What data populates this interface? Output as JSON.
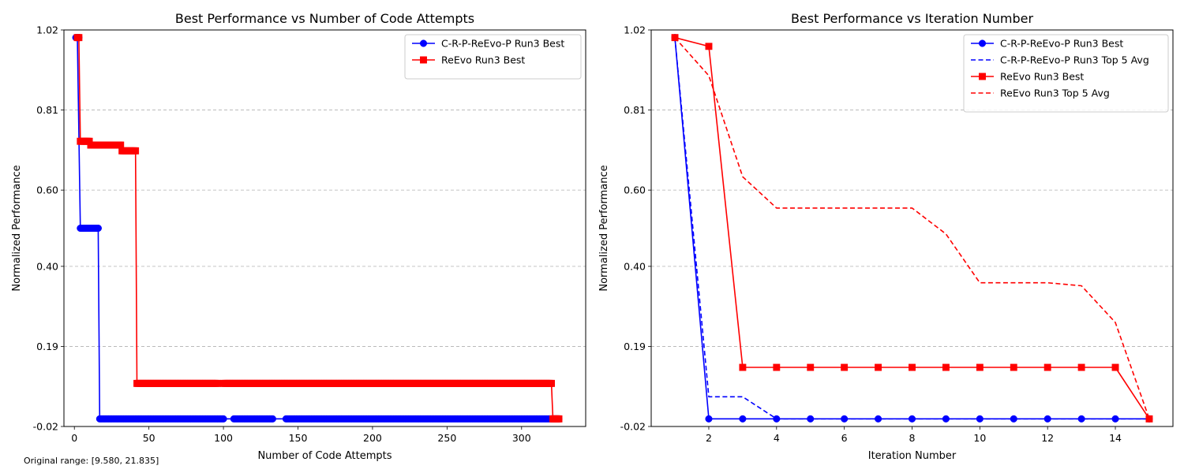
{
  "footnote": "Original range: [9.580, 21.835]",
  "chart_data": [
    {
      "type": "line",
      "title": "Best Performance vs Number of Code Attempts",
      "xlabel": "Number of Code Attempts",
      "ylabel": "Normalized Performance",
      "xlim": [
        -7,
        343
      ],
      "ylim": [
        -0.02,
        1.02
      ],
      "xticks": [
        0,
        50,
        100,
        150,
        200,
        250,
        300
      ],
      "xtick_labels": [
        "0",
        "50",
        "100",
        "150",
        "200",
        "250",
        "300"
      ],
      "yticks": [
        -0.02,
        0.19,
        0.4,
        0.6,
        0.81,
        1.02
      ],
      "ytick_labels": [
        "-0.02",
        "0.19",
        "0.40",
        "0.60",
        "0.81",
        "1.02"
      ],
      "grid": "y-dashed",
      "legend": "top-right",
      "series": [
        {
          "name": "C-R-P-ReEvo-P Run3 Best",
          "color": "#0000ff",
          "line_style": "solid",
          "marker": "circle",
          "dense_marker_gaps": [
            [
              100,
              107
            ],
            [
              133,
              142
            ]
          ],
          "steps": [
            [
              1,
              1.0
            ],
            [
              2,
              1.0
            ],
            [
              4,
              0.5
            ],
            [
              16,
              0.5
            ],
            [
              17,
              0.0
            ],
            [
              325,
              0.0
            ]
          ]
        },
        {
          "name": "ReEvo Run3 Best",
          "color": "#ff0000",
          "line_style": "solid",
          "marker": "square",
          "dense_marker_gaps": [
            [
              96,
              100
            ]
          ],
          "steps": [
            [
              2,
              1.0
            ],
            [
              3,
              1.0
            ],
            [
              4,
              0.728
            ],
            [
              10,
              0.728
            ],
            [
              11,
              0.718
            ],
            [
              31,
              0.718
            ],
            [
              32,
              0.703
            ],
            [
              41,
              0.703
            ],
            [
              42,
              0.093
            ],
            [
              320,
              0.093
            ],
            [
              321,
              0.0
            ],
            [
              325,
              0.0
            ]
          ]
        }
      ]
    },
    {
      "type": "line",
      "title": "Best Performance vs Iteration Number",
      "xlabel": "Iteration Number",
      "ylabel": "Normalized Performance",
      "xlim": [
        0.3,
        15.7
      ],
      "ylim": [
        -0.02,
        1.02
      ],
      "xticks": [
        2,
        4,
        6,
        8,
        10,
        12,
        14
      ],
      "xtick_labels": [
        "2",
        "4",
        "6",
        "8",
        "10",
        "12",
        "14"
      ],
      "yticks": [
        -0.02,
        0.19,
        0.4,
        0.6,
        0.81,
        1.02
      ],
      "ytick_labels": [
        "-0.02",
        "0.19",
        "0.40",
        "0.60",
        "0.81",
        "1.02"
      ],
      "grid": "y-dashed",
      "legend": "top-right",
      "x": [
        1,
        2,
        3,
        4,
        5,
        6,
        7,
        8,
        9,
        10,
        11,
        12,
        13,
        14,
        15
      ],
      "series": [
        {
          "name": "C-R-P-ReEvo-P Run3 Best",
          "color": "#0000ff",
          "line_style": "solid",
          "marker": "circle",
          "values": [
            1.0,
            0.0,
            0.0,
            0.0,
            0.0,
            0.0,
            0.0,
            0.0,
            0.0,
            0.0,
            0.0,
            0.0,
            0.0,
            0.0,
            0.0
          ]
        },
        {
          "name": "C-R-P-ReEvo-P Run3 Top 5 Avg",
          "color": "#0000ff",
          "line_style": "dashed",
          "marker": "none",
          "values": [
            1.0,
            0.058,
            0.058,
            0.0,
            0.0,
            0.0,
            0.0,
            0.0,
            0.0,
            0.0,
            0.0,
            0.0,
            0.0,
            0.0,
            0.0
          ]
        },
        {
          "name": "ReEvo Run3 Best",
          "color": "#ff0000",
          "line_style": "solid",
          "marker": "square",
          "values": [
            1.0,
            0.977,
            0.135,
            0.135,
            0.135,
            0.135,
            0.135,
            0.135,
            0.135,
            0.135,
            0.135,
            0.135,
            0.135,
            0.135,
            0.0
          ]
        },
        {
          "name": "ReEvo Run3 Top 5 Avg",
          "color": "#ff0000",
          "line_style": "dashed",
          "marker": "none",
          "values": [
            1.0,
            0.9,
            0.635,
            0.553,
            0.553,
            0.553,
            0.553,
            0.553,
            0.485,
            0.357,
            0.357,
            0.357,
            0.349,
            0.253,
            0.0
          ]
        }
      ]
    }
  ]
}
